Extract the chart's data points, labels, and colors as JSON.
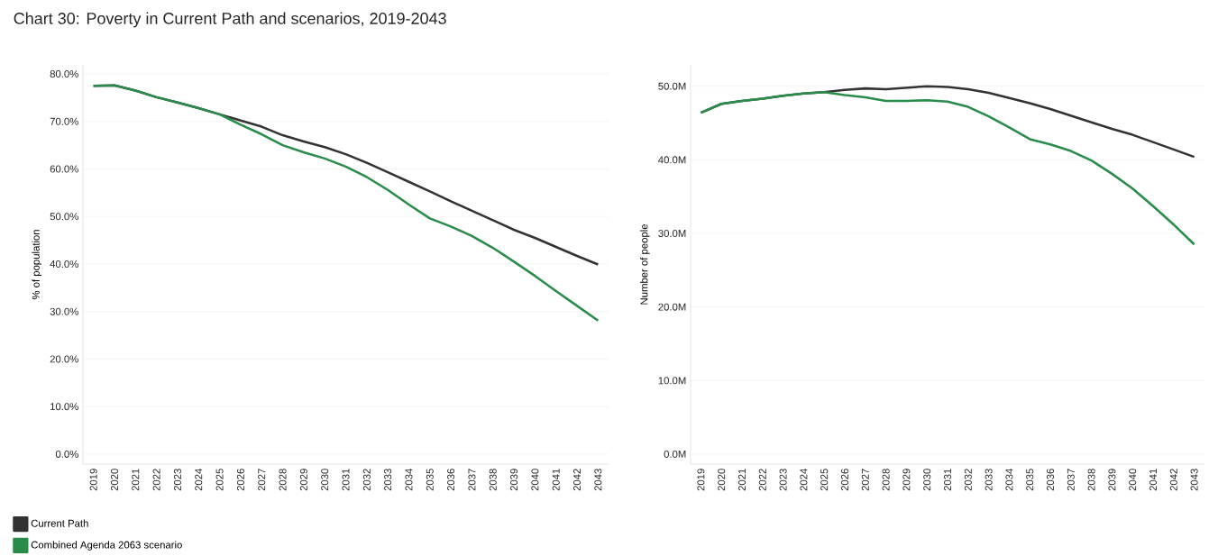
{
  "chart_data": [
    {
      "type": "line",
      "title": "Chart 30: Poverty in Current Path and scenarios, 2019-2043",
      "ylabel": "% of population",
      "categories": [
        "2019",
        "2020",
        "2021",
        "2022",
        "2023",
        "2024",
        "2025",
        "2026",
        "2027",
        "2028",
        "2029",
        "2030",
        "2031",
        "2032",
        "2033",
        "2034",
        "2035",
        "2036",
        "2037",
        "2038",
        "2039",
        "2040",
        "2041",
        "2042",
        "2043"
      ],
      "series": [
        {
          "name": "Current Path",
          "color": "#333333",
          "values": [
            77.5,
            77.6,
            76.5,
            75.1,
            74.0,
            72.8,
            71.5,
            70.2,
            68.9,
            67.1,
            65.8,
            64.6,
            63.1,
            61.3,
            59.3,
            57.3,
            55.3,
            53.2,
            51.2,
            49.2,
            47.2,
            45.5,
            43.6,
            41.7,
            39.9
          ]
        },
        {
          "name": "Combined Agenda 2063 scenario",
          "color": "#2a8c4a",
          "values": [
            77.5,
            77.6,
            76.5,
            75.1,
            74.0,
            72.8,
            71.5,
            69.3,
            67.3,
            65.0,
            63.5,
            62.2,
            60.5,
            58.3,
            55.6,
            52.5,
            49.6,
            47.9,
            45.9,
            43.4,
            40.5,
            37.5,
            34.3,
            31.2,
            28.1
          ]
        }
      ],
      "ylim": [
        -2.1,
        81.9
      ],
      "yticks": [
        {
          "value": 0,
          "label": "0.0%"
        },
        {
          "value": 10,
          "label": "10.0%"
        },
        {
          "value": 20,
          "label": "20.0%"
        },
        {
          "value": 30,
          "label": "30.0%"
        },
        {
          "value": 40,
          "label": "40.0%"
        },
        {
          "value": 50,
          "label": "50.0%"
        },
        {
          "value": 60,
          "label": "60.0%"
        },
        {
          "value": 70,
          "label": "70.0%"
        },
        {
          "value": 80,
          "label": "80.0%"
        }
      ],
      "grid": "y",
      "legend": "bottom left",
      "marker": "none"
    },
    {
      "type": "line",
      "ylabel": "Number of people",
      "categories": [
        "2019",
        "2020",
        "2021",
        "2022",
        "2023",
        "2024",
        "2025",
        "2026",
        "2027",
        "2028",
        "2029",
        "2030",
        "2031",
        "2032",
        "2033",
        "2034",
        "2035",
        "2036",
        "2037",
        "2038",
        "2039",
        "2040",
        "2041",
        "2042",
        "2043"
      ],
      "series": [
        {
          "color": "#333333",
          "values": [
            46.4,
            47.6,
            48.0,
            48.3,
            48.7,
            49.0,
            49.2,
            49.5,
            49.7,
            49.6,
            49.8,
            50.0,
            49.9,
            49.6,
            49.1,
            48.4,
            47.7,
            46.9,
            46.0,
            45.1,
            44.2,
            43.4,
            42.4,
            41.4,
            40.4
          ]
        },
        {
          "color": "#2a8c4a",
          "values": [
            46.4,
            47.6,
            48.0,
            48.3,
            48.7,
            49.0,
            49.2,
            48.8,
            48.5,
            48.0,
            48.0,
            48.1,
            47.9,
            47.2,
            45.9,
            44.4,
            42.8,
            42.1,
            41.2,
            39.9,
            38.1,
            36.1,
            33.7,
            31.2,
            28.5
          ]
        }
      ],
      "ylim": [
        -1.35,
        52.9
      ],
      "yticks": [
        {
          "value": 0,
          "label": "0.0M"
        },
        {
          "value": 10,
          "label": "10.0M"
        },
        {
          "value": 20,
          "label": "20.0M"
        },
        {
          "value": 30,
          "label": "30.0M"
        },
        {
          "value": 40,
          "label": "40.0M"
        },
        {
          "value": 50,
          "label": "50.0M"
        }
      ],
      "grid": "y",
      "marker": "none"
    }
  ]
}
